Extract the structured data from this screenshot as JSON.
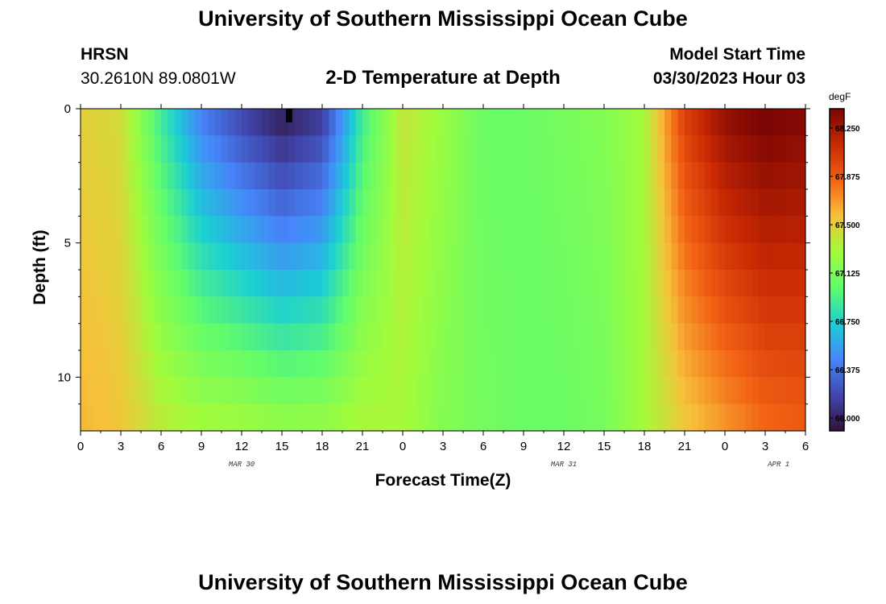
{
  "page": {
    "title": "University of Southern Mississippi Ocean Cube",
    "footer_title": "University of Southern Mississippi Ocean Cube",
    "station": "HRSN",
    "coords": "30.2610N  89.0801W",
    "plot_title": "2-D Temperature at Depth",
    "model_label": "Model Start Time",
    "model_time": "03/30/2023 Hour 03"
  },
  "chart_data": {
    "type": "heatmap",
    "xlabel": "Forecast Time(Z)",
    "ylabel": "Depth (ft)",
    "xlim": [
      0,
      54
    ],
    "ylim": [
      0,
      12
    ],
    "y_inverted": true,
    "x_tick_labels": [
      "0",
      "3",
      "6",
      "9",
      "12",
      "15",
      "18",
      "21",
      "0",
      "3",
      "6",
      "9",
      "12",
      "15",
      "18",
      "21",
      "0",
      "3",
      "6"
    ],
    "y_tick_labels": [
      "0",
      "5",
      "10"
    ],
    "date_labels": [
      {
        "label": "MAR 30",
        "hour": 12
      },
      {
        "label": "MAR 31",
        "hour": 36
      },
      {
        "label": "APR 1",
        "hour": 52
      }
    ],
    "colorbar": {
      "units": "degF",
      "min": 65.9,
      "max": 68.4,
      "tick_values": [
        66.0,
        66.375,
        66.75,
        67.125,
        67.5,
        67.875,
        68.25
      ],
      "tick_labels": [
        "66.000",
        "66.375",
        "66.750",
        "67.125",
        "67.500",
        "67.875",
        "68.250"
      ]
    },
    "depths_ft": [
      0,
      1,
      2,
      3,
      4,
      5,
      6,
      7,
      8,
      9,
      10,
      11,
      12
    ],
    "hours": [
      0,
      3,
      6,
      9,
      12,
      15,
      18,
      21,
      24,
      27,
      30,
      33,
      36,
      39,
      42,
      45,
      48,
      51,
      54
    ],
    "temperature_surface_degF": [
      67.5,
      67.45,
      66.9,
      66.45,
      66.2,
      66.0,
      66.15,
      66.9,
      67.4,
      67.25,
      67.05,
      67.05,
      67.1,
      67.15,
      67.3,
      68.0,
      68.3,
      68.4,
      68.35
    ],
    "temperature_bottom_degF": [
      67.6,
      67.55,
      67.4,
      67.35,
      67.35,
      67.3,
      67.3,
      67.35,
      67.3,
      67.15,
      67.1,
      67.05,
      67.05,
      67.1,
      67.3,
      67.5,
      67.65,
      67.8,
      67.85
    ]
  }
}
